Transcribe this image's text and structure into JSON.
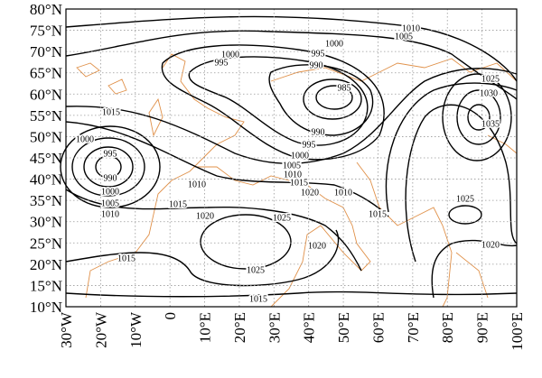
{
  "y_ticks": [
    "80°N",
    "75°N",
    "70°N",
    "65°N",
    "60°N",
    "55°N",
    "50°N",
    "45°N",
    "40°N",
    "35°N",
    "30°N",
    "25°N",
    "20°N",
    "15°N",
    "10°N"
  ],
  "x_ticks": [
    "30°W",
    "20°W",
    "10°W",
    "0",
    "10°E",
    "20°E",
    "30°E",
    "40°E",
    "50°E",
    "60°E",
    "70°E",
    "80°E",
    "90°E",
    "100°E"
  ],
  "contour_labels": [
    "1010",
    "1005",
    "1000",
    "995",
    "1000",
    "995",
    "990",
    "985",
    "1015",
    "1025",
    "1030",
    "1035",
    "990",
    "995",
    "1000",
    "995",
    "1000",
    "1005",
    "990",
    "1010",
    "1015",
    "1010",
    "1000",
    "1020",
    "1010",
    "1005",
    "1015",
    "1010",
    "1025",
    "1015",
    "1020",
    "1025",
    "1020",
    "1020",
    "1015",
    "1025",
    "1015"
  ]
}
